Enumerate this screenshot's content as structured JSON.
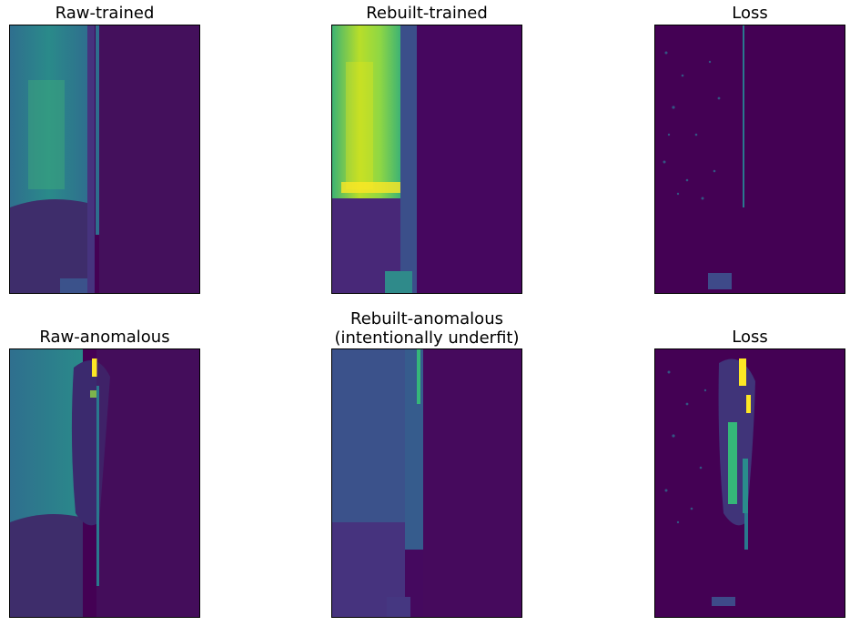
{
  "figure": {
    "panels": [
      {
        "title": "Raw-trained",
        "kind": "raw",
        "colormap": "viridis"
      },
      {
        "title": "Rebuilt-trained",
        "kind": "rebuilt",
        "colormap": "viridis"
      },
      {
        "title": "Loss",
        "kind": "loss",
        "colormap": "viridis"
      },
      {
        "title": "Raw-anomalous",
        "kind": "raw-anomalous",
        "colormap": "viridis"
      },
      {
        "title": "Rebuilt-anomalous\n(intentionally underfit)",
        "kind": "rebuilt-anomalous",
        "colormap": "viridis"
      },
      {
        "title": "Loss",
        "kind": "loss-anomalous",
        "colormap": "viridis"
      }
    ]
  },
  "colors": {
    "background_dark": "#440154",
    "mid_dark": "#3b2a6e",
    "teal": "#2a8c8c",
    "green": "#35b779",
    "yellow": "#fde725"
  }
}
